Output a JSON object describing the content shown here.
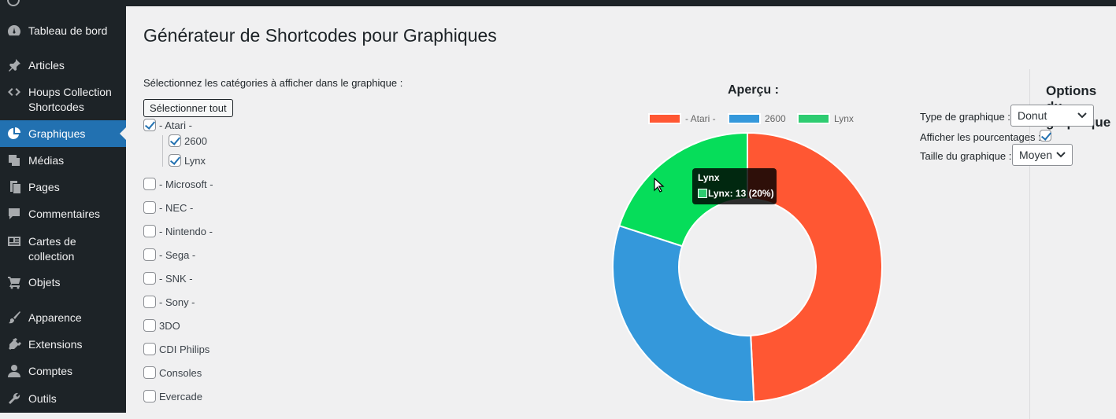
{
  "sidebar": {
    "items": [
      {
        "label": "Tableau de bord",
        "icon": "dashboard-icon"
      },
      {
        "label": "Articles",
        "icon": "pin-icon"
      },
      {
        "label": "Houps Collection Shortcodes",
        "icon": "code-icon"
      },
      {
        "label": "Graphiques",
        "icon": "pie-chart-icon",
        "active": true
      },
      {
        "label": "Médias",
        "icon": "media-icon"
      },
      {
        "label": "Pages",
        "icon": "pages-icon"
      },
      {
        "label": "Commentaires",
        "icon": "comment-icon"
      },
      {
        "label": "Cartes de collection",
        "icon": "id-card-icon"
      },
      {
        "label": "Objets",
        "icon": "cart-icon"
      },
      {
        "label": "Apparence",
        "icon": "brush-icon"
      },
      {
        "label": "Extensions",
        "icon": "plugin-icon"
      },
      {
        "label": "Comptes",
        "icon": "user-icon"
      },
      {
        "label": "Outils",
        "icon": "wrench-icon"
      }
    ]
  },
  "page": {
    "title": "Générateur de Shortcodes pour Graphiques",
    "instructions": "Sélectionnez les catégories à afficher dans le graphique :",
    "select_all_label": "Sélectionner tout"
  },
  "categories": [
    {
      "label": "- Atari -",
      "checked": true
    },
    {
      "label": "2600",
      "checked": true,
      "child": true
    },
    {
      "label": "Lynx",
      "checked": true,
      "child": true
    },
    {
      "label": "- Microsoft -",
      "checked": false
    },
    {
      "label": "- NEC -",
      "checked": false
    },
    {
      "label": "- Nintendo -",
      "checked": false
    },
    {
      "label": "- Sega -",
      "checked": false
    },
    {
      "label": "- SNK -",
      "checked": false
    },
    {
      "label": "- Sony -",
      "checked": false
    },
    {
      "label": "3DO",
      "checked": false
    },
    {
      "label": "CDI Philips",
      "checked": false
    },
    {
      "label": "Consoles",
      "checked": false
    },
    {
      "label": "Evercade",
      "checked": false
    }
  ],
  "preview": {
    "title": "Aperçu :"
  },
  "chart_data": {
    "type": "pie",
    "variant": "donut",
    "categories": [
      "- Atari -",
      "2600",
      "Lynx"
    ],
    "values": [
      32,
      20,
      13
    ],
    "colors": [
      "#ff5733",
      "#3498db",
      "#2ecc71"
    ],
    "legend_position": "top"
  },
  "tooltip": {
    "title": "Lynx",
    "body": "Lynx: 13 (20%)",
    "color": "#2ecc71"
  },
  "options": {
    "title": "Options du graphique",
    "type_label": "Type de graphique :",
    "type_value": "Donut",
    "percent_label": "Afficher les pourcentages :",
    "percent_checked": true,
    "size_label": "Taille du graphique :",
    "size_value": "Moyen"
  }
}
